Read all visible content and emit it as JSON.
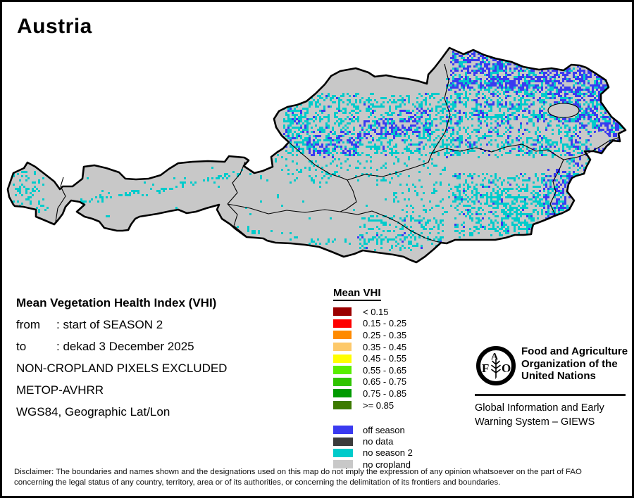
{
  "title": "Austria",
  "info": {
    "heading": "Mean Vegetation Health Index (VHI)",
    "from_label": "from",
    "from_value": ": start of SEASON 2",
    "to_label": "to",
    "to_value": ": dekad 3 December 2025",
    "line1": "NON-CROPLAND PIXELS EXCLUDED",
    "line2": "METOP-AVHRR",
    "line3": "WGS84, Geographic Lat/Lon"
  },
  "legend": {
    "title": "Mean VHI",
    "classes": [
      {
        "label": "< 0.15",
        "color": "#9b0000"
      },
      {
        "label": "0.15 - 0.25",
        "color": "#fe0000"
      },
      {
        "label": "0.25 - 0.35",
        "color": "#ff8a00"
      },
      {
        "label": "0.35 - 0.45",
        "color": "#fdc96a"
      },
      {
        "label": "0.45 - 0.55",
        "color": "#ffff00"
      },
      {
        "label": "0.55 - 0.65",
        "color": "#58ee00"
      },
      {
        "label": "0.65 - 0.75",
        "color": "#2fc400"
      },
      {
        "label": "0.75 - 0.85",
        "color": "#009a00"
      },
      {
        "label": ">= 0.85",
        "color": "#3c7a00"
      }
    ],
    "flags": [
      {
        "label": "off season",
        "color": "#3a3af0"
      },
      {
        "label": "no data",
        "color": "#3b3b3b"
      },
      {
        "label": "no season 2",
        "color": "#00cbcb"
      },
      {
        "label": "no cropland",
        "color": "#c8c8c8"
      }
    ]
  },
  "org": {
    "logo_f": "F",
    "logo_a": "A",
    "logo_o": "O",
    "motto": "FIAT   PANIS",
    "name1": "Food and Agriculture",
    "name2": "Organization of the",
    "name3": "United Nations",
    "sub1": "Global Information and Early",
    "sub2": "Warning System – GIEWS"
  },
  "disclaimer": {
    "line1": "Disclaimer: The boundaries and names shown and the designations used on this map do not imply the expression of any opinion whatsoever on the part of FAO",
    "line2": "concerning the legal status of any country, territory, area or of its authorities, or concerning the delimitation of its frontiers and boundaries."
  },
  "map": {
    "country": "Austria",
    "land_color": "#c8c8c8",
    "border_color": "#000000",
    "off_season_color": "#3a3af0",
    "no_season2_color": "#00cbcb"
  }
}
